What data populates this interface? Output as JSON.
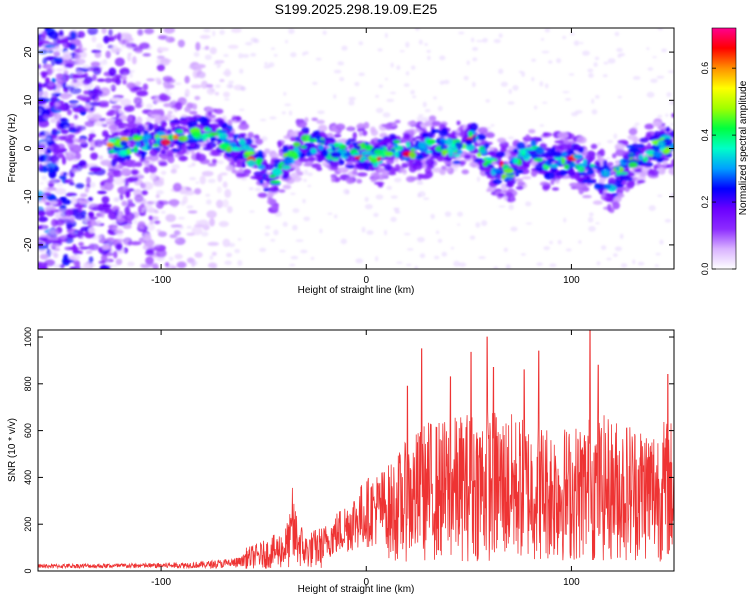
{
  "title": "S199.2025.298.19.09.E25",
  "chart_data": [
    {
      "type": "heatmap",
      "name": "spectrogram",
      "xlabel": "Height of straight line (km)",
      "ylabel": "Frequency (Hz)",
      "xlim": [
        -160,
        150
      ],
      "ylim": [
        -25,
        25
      ],
      "xticks": [
        -100,
        0,
        100
      ],
      "yticks": [
        -20,
        -10,
        0,
        10,
        20
      ],
      "colorbar": {
        "label": "Normalized spectral amplitude",
        "range": [
          0.0,
          0.72
        ],
        "ticks": [
          0.0,
          0.2,
          0.4,
          0.6
        ],
        "stops": [
          "#ffffff",
          "#d9b3ff",
          "#8c2bff",
          "#6a00ff",
          "#0000ff",
          "#00a0ff",
          "#00ffc8",
          "#00ff40",
          "#a0ff00",
          "#ffff00",
          "#ff9000",
          "#ff0000",
          "#ff0090"
        ]
      },
      "ridge": {
        "description_points_x": [
          -125,
          -110,
          -100,
          -90,
          -80,
          -70,
          -60,
          -50,
          -45,
          -40,
          -30,
          -20,
          -10,
          0,
          5,
          15,
          25,
          35,
          45,
          52,
          60,
          70,
          80,
          90,
          100,
          110,
          120,
          130,
          140,
          148
        ],
        "description_points_y": [
          0,
          1,
          2,
          3,
          3,
          2,
          0,
          -5,
          -7,
          -3,
          1,
          0,
          -1,
          -1,
          -2,
          0,
          -1,
          1,
          0,
          2,
          -3,
          -5,
          0,
          -3,
          -2,
          -5,
          -7,
          -2,
          0,
          1
        ]
      }
    },
    {
      "type": "line",
      "name": "snr",
      "xlabel": "Height of straight line (km)",
      "ylabel": "SNR (10 * v/v)",
      "xlim": [
        -160,
        150
      ],
      "ylim": [
        0,
        1030
      ],
      "xticks": [
        -100,
        0,
        100
      ],
      "yticks": [
        0,
        200,
        400,
        600,
        800,
        1000
      ],
      "color": "#ee3333",
      "envelope_x": [
        -160,
        -140,
        -120,
        -100,
        -80,
        -70,
        -60,
        -50,
        -40,
        -35,
        -30,
        -20,
        -10,
        0,
        10,
        20,
        30,
        40,
        50,
        60,
        70,
        80,
        90,
        100,
        110,
        120,
        130,
        140,
        150
      ],
      "envelope_y": [
        40,
        45,
        45,
        50,
        60,
        75,
        95,
        130,
        180,
        300,
        160,
        200,
        300,
        400,
        450,
        560,
        650,
        650,
        690,
        700,
        680,
        650,
        640,
        620,
        680,
        660,
        650,
        640,
        660
      ],
      "peaks": [
        {
          "x": -36,
          "y": 355
        },
        {
          "x": 20,
          "y": 790
        },
        {
          "x": 27,
          "y": 950
        },
        {
          "x": 41,
          "y": 830
        },
        {
          "x": 51,
          "y": 935
        },
        {
          "x": 59,
          "y": 1000
        },
        {
          "x": 62,
          "y": 870
        },
        {
          "x": 77,
          "y": 860
        },
        {
          "x": 84,
          "y": 940
        },
        {
          "x": 109,
          "y": 1030
        },
        {
          "x": 113,
          "y": 880
        },
        {
          "x": 147,
          "y": 840
        }
      ]
    }
  ]
}
